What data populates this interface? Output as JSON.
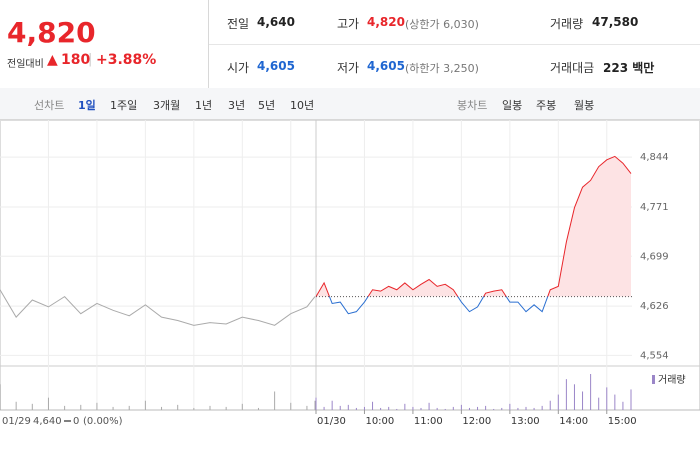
{
  "quote": {
    "price": "4,820",
    "change_label": "전일대비",
    "change": "180",
    "change_pct": "+3.88%"
  },
  "summary": [
    {
      "label": "전일",
      "value": "4,640"
    },
    {
      "label": "고가",
      "value": "4,820",
      "note": "(상한가 6,030)"
    },
    {
      "label": "거래량",
      "value": "47,580"
    },
    {
      "label": "시가",
      "value": "4,605"
    },
    {
      "label": "저가",
      "value": "4,605",
      "note": "(하한가 3,250)"
    },
    {
      "label": "거래대금",
      "value": "223 백만"
    }
  ],
  "tabs": {
    "line_label": "선차트",
    "line_tabs": [
      "1일",
      "1주일",
      "3개월",
      "1년",
      "3년",
      "5년",
      "10년"
    ],
    "candle_label": "봉차트",
    "candle_tabs": [
      "일봉",
      "주봉",
      "월봉"
    ]
  },
  "footnote": {
    "date": "01/29",
    "price": "4,640",
    "change": "0",
    "pct": "(0.00%)"
  },
  "chart_data": {
    "type": "line",
    "ylim": [
      4540,
      4869
    ],
    "yticks": [
      {
        "value": 4844,
        "label": "4,844"
      },
      {
        "value": 4771,
        "label": "4,771"
      },
      {
        "value": 4699,
        "label": "4,699"
      },
      {
        "value": 4626,
        "label": "4,626"
      },
      {
        "value": 4554,
        "label": "4,554"
      }
    ],
    "xticks": [
      {
        "value": "09:00",
        "label": "01/30"
      },
      "10:00",
      "11:00",
      "12:00",
      "13:00",
      "14:00",
      "15:00"
    ],
    "baseline": 4640,
    "grid": true,
    "up_color": "#e8262b",
    "down_color": "#2a6fd1",
    "up_fill": "#fde3e4",
    "volume_name": "거래량",
    "volume_color": "#9b86c8",
    "series": [
      {
        "color": "#aaaaaa",
        "x": [
          "09:00",
          "09:20",
          "09:40",
          "10:00",
          "10:20",
          "10:40",
          "11:00",
          "11:20",
          "11:40",
          "12:00",
          "12:20",
          "12:40",
          "13:00",
          "13:20",
          "13:40",
          "14:00",
          "14:20",
          "14:40",
          "15:00",
          "15:20",
          "15:30"
        ],
        "values": [
          4650,
          4610,
          4635,
          4625,
          4640,
          4615,
          4630,
          4620,
          4612,
          4628,
          4610,
          4605,
          4598,
          4602,
          4600,
          4610,
          4605,
          4598,
          4615,
          4625,
          4640
        ],
        "volume": [
          2500,
          800,
          600,
          1200,
          400,
          500,
          700,
          300,
          400,
          900,
          300,
          500,
          200,
          400,
          300,
          600,
          200,
          1800,
          700,
          400,
          900
        ]
      },
      {
        "color": "#e8262b",
        "x": [
          "09:00",
          "09:10",
          "09:20",
          "09:30",
          "09:40",
          "09:50",
          "10:00",
          "10:10",
          "10:20",
          "10:30",
          "10:40",
          "10:50",
          "11:00",
          "11:10",
          "11:20",
          "11:30",
          "11:40",
          "11:50",
          "12:00",
          "12:10",
          "12:20",
          "12:30",
          "12:40",
          "12:50",
          "13:00",
          "13:10",
          "13:20",
          "13:30",
          "13:40",
          "13:50",
          "14:00",
          "14:10",
          "14:20",
          "14:30",
          "14:40",
          "14:50",
          "15:00",
          "15:10",
          "15:20",
          "15:30"
        ],
        "values": [
          4640,
          4660,
          4630,
          4632,
          4615,
          4618,
          4632,
          4650,
          4648,
          4655,
          4650,
          4660,
          4650,
          4658,
          4665,
          4655,
          4658,
          4650,
          4632,
          4618,
          4625,
          4645,
          4648,
          4650,
          4632,
          4632,
          4618,
          4628,
          4618,
          4650,
          4655,
          4720,
          4770,
          4800,
          4810,
          4830,
          4840,
          4845,
          4835,
          4820
        ],
        "volume": [
          1200,
          300,
          900,
          400,
          500,
          200,
          300,
          800,
          200,
          300,
          100,
          600,
          300,
          200,
          700,
          200,
          100,
          300,
          500,
          200,
          300,
          400,
          100,
          200,
          600,
          200,
          300,
          200,
          400,
          900,
          1500,
          3000,
          2500,
          1800,
          3500,
          1200,
          2200,
          1500,
          800,
          2000
        ]
      }
    ]
  }
}
